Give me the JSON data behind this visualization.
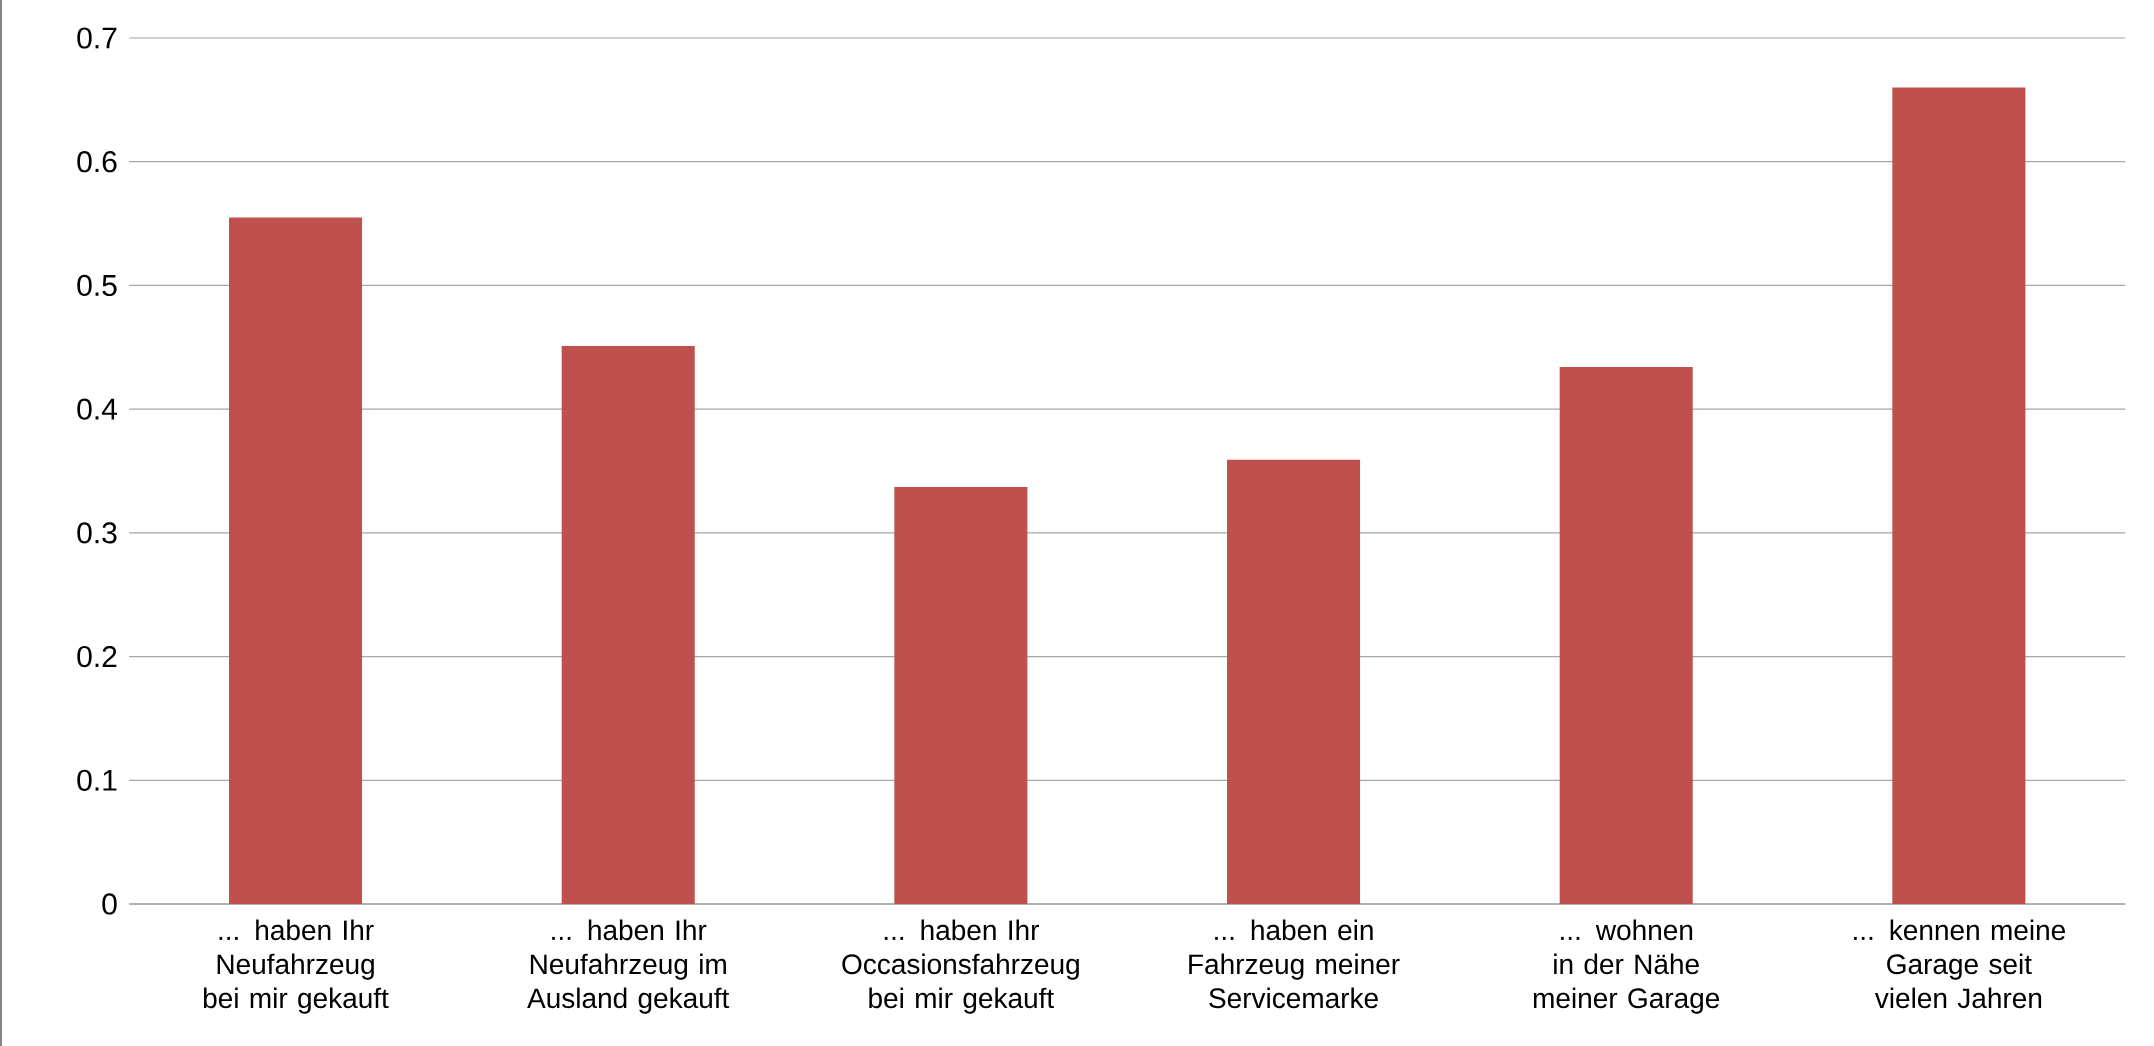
{
  "chart_data": {
    "type": "bar",
    "categories": [
      "... haben Ihr Neufahrzeug bei mir gekauft",
      "... haben Ihr Neufahrzeug im Ausland gekauft",
      "... haben Ihr Occasionsfahrzeug bei mir gekauft",
      "... haben ein Fahrzeug meiner Servicemarke",
      "... wohnen in der Nähe meiner Garage",
      "... kennen meine Garage seit vielen Jahren"
    ],
    "values": [
      0.555,
      0.451,
      0.337,
      0.359,
      0.434,
      0.66
    ],
    "color": "#c0504d",
    "ylim": [
      0,
      0.7
    ],
    "yticks": [
      0,
      0.1,
      0.2,
      0.3,
      0.4,
      0.5,
      0.6,
      0.7
    ],
    "grid": "y"
  }
}
